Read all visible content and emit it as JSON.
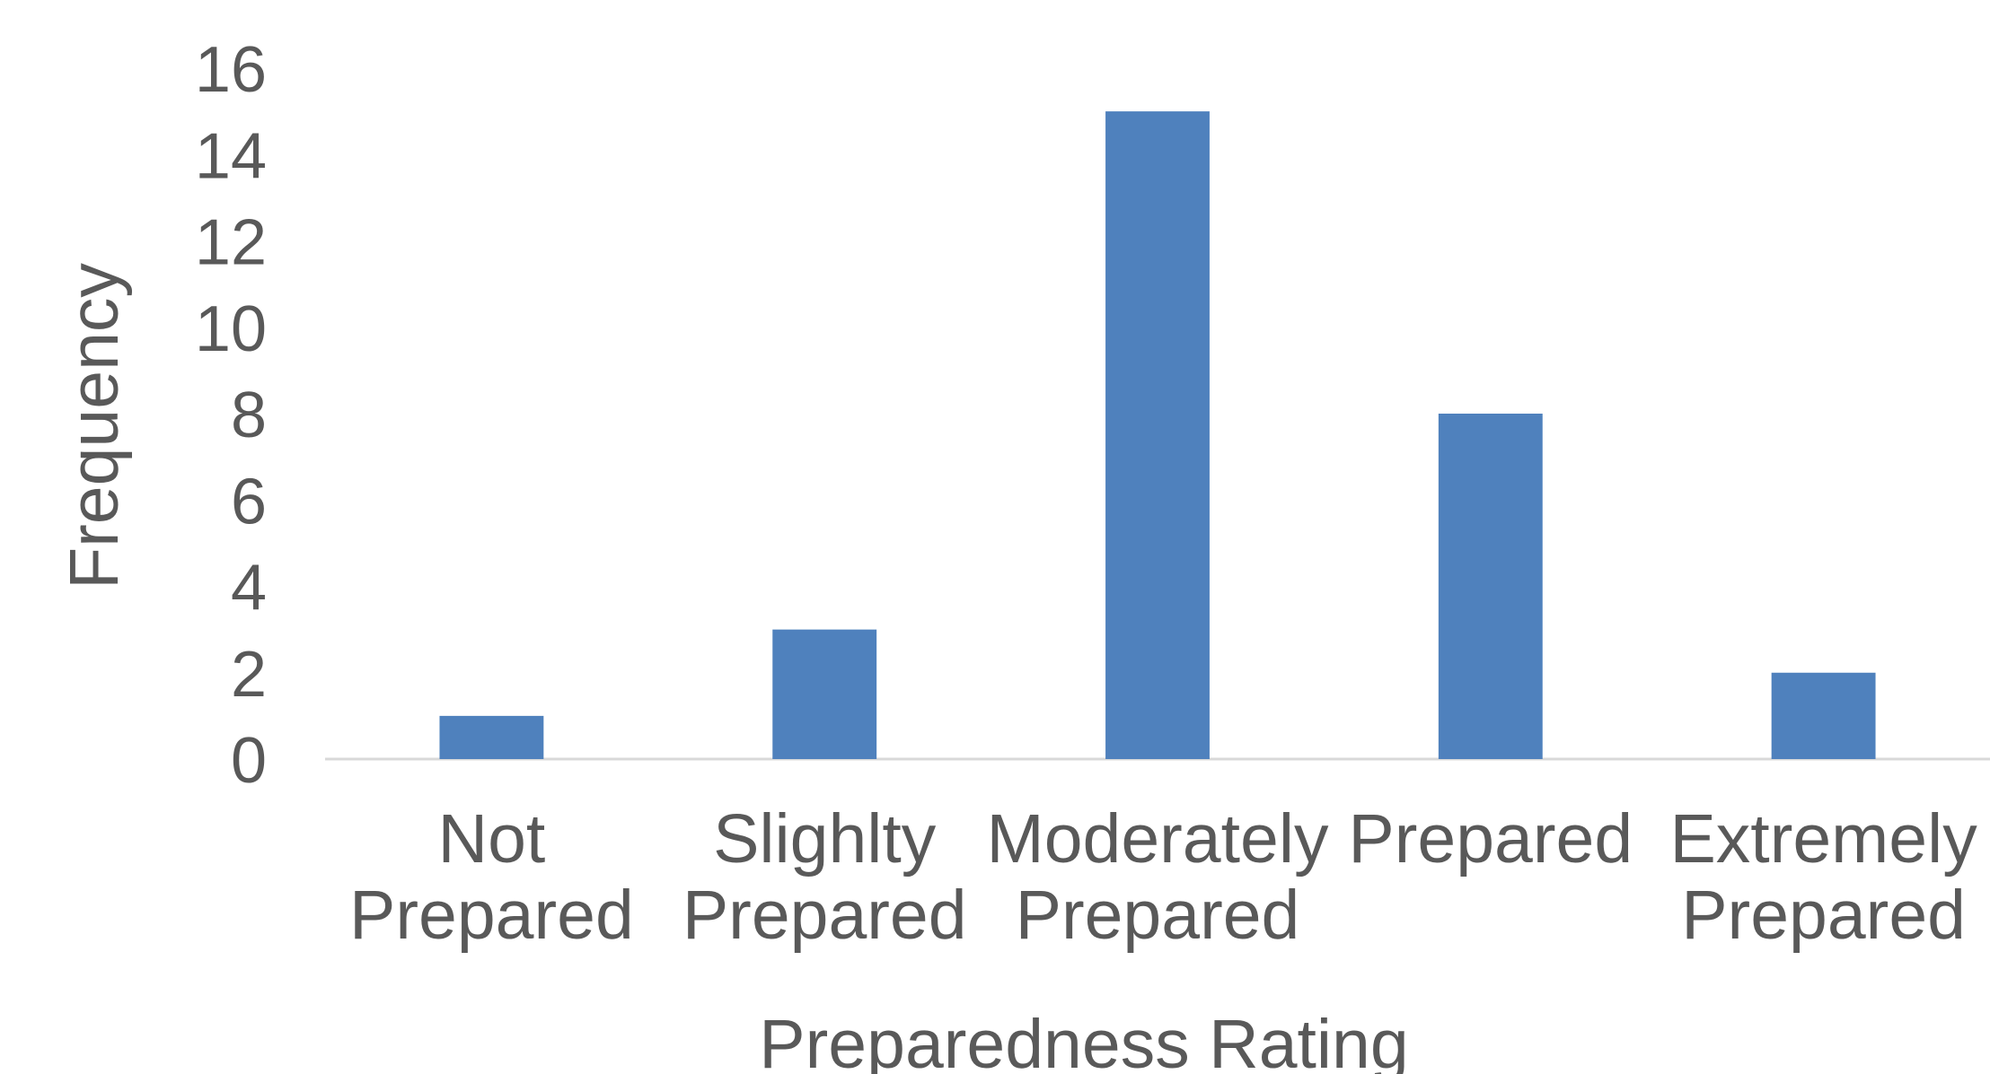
{
  "chart_data": {
    "type": "bar",
    "title": "",
    "xlabel": "Preparedness Rating",
    "ylabel": "Frequency",
    "categories": [
      [
        "Not",
        "Prepared"
      ],
      [
        "Slighlty",
        "Prepared"
      ],
      [
        "Moderately",
        "Prepared"
      ],
      [
        "Prepared"
      ],
      [
        "Extremely",
        "Prepared"
      ]
    ],
    "values": [
      1,
      3,
      15,
      8,
      2
    ],
    "ylim": [
      0,
      16
    ],
    "yticks": [
      "0",
      "2",
      "4",
      "6",
      "8",
      "10",
      "12",
      "14",
      "16"
    ],
    "grid": false,
    "legend": "none",
    "colors": {
      "bar": "#4F81BD",
      "axis": "#D9D9D9",
      "text": "#595959"
    }
  }
}
